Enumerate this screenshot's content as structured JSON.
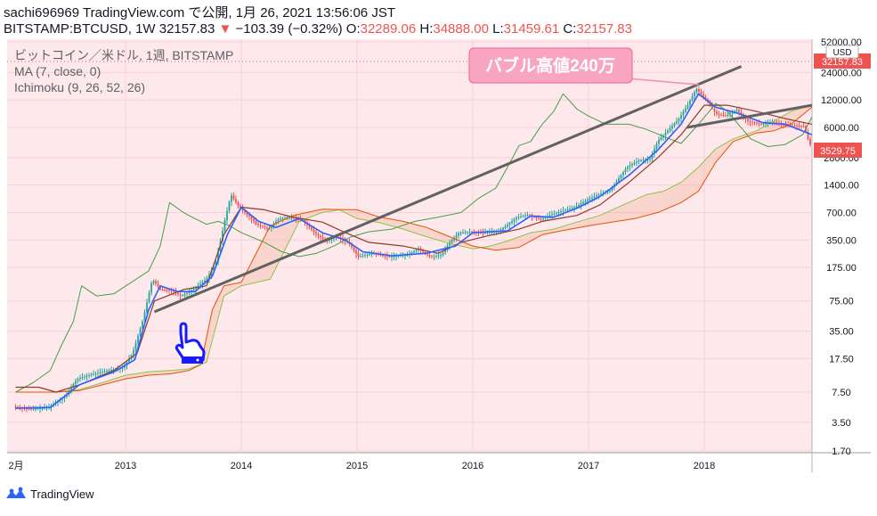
{
  "header": {
    "line1": "sachi696969 TradingView.com で公開, 1月 26, 2021 13:56:06 JST",
    "symbol": "BITSTAMP:BTCUSD, 1W 32157.83",
    "change": "−103.39 (−0.32%)",
    "o_label": "O:",
    "o_value": "32289.06",
    "h_label": "H:",
    "h_value": "34888.00",
    "l_label": "L:",
    "l_value": "31459.61",
    "c_label": "C:",
    "c_value": "32157.83"
  },
  "legend": {
    "title": "ビットコイン／米ドル, 1週, BITSTAMP",
    "ma": "MA (7, close, 0)",
    "ichimoku": "Ichimoku (9, 26, 52, 26)"
  },
  "annotation": {
    "text": "バブル高値240万"
  },
  "price_tag": {
    "current": "32157.83",
    "sub": "3529.75",
    "currency": "USD"
  },
  "footer": {
    "brand": "TradingView"
  },
  "colors": {
    "plot_bg": "#fde8ec",
    "up": "#26a69a",
    "down": "#ef5350",
    "ma": "#2962ff",
    "conversion": "#1e88e5",
    "base": "#8d3b2a",
    "lagging": "#43a047",
    "span_a": "#8bc34a",
    "span_b": "#e65100",
    "trendline": "#616161",
    "callout": "#f48fb1",
    "hand": "#1a1aff"
  },
  "chart_data": {
    "type": "line",
    "scale": "log",
    "x_labels": [
      "2月",
      "2013",
      "2014",
      "2015",
      "2016",
      "2017",
      "2018"
    ],
    "y_ticks": [
      1.7,
      3.5,
      7.5,
      17.5,
      35,
      75,
      175,
      350,
      700,
      1400,
      2800,
      6000,
      12000,
      24000,
      52000
    ],
    "y_tick_labels": [
      "1.70",
      "3.50",
      "7.50",
      "17.50",
      "35.00",
      "75.00",
      "175.00",
      "350.00",
      "700.00",
      "1400.00",
      "2800.00",
      "6000.00",
      "12000.00",
      "24000.00",
      "52000.00"
    ],
    "series": [
      {
        "key": "price",
        "points": [
          [
            2012.05,
            5.2
          ],
          [
            2012.2,
            4.9
          ],
          [
            2012.35,
            5.1
          ],
          [
            2012.5,
            6.8
          ],
          [
            2012.6,
            10.5
          ],
          [
            2012.75,
            12
          ],
          [
            2012.9,
            13.2
          ],
          [
            2013.0,
            14
          ],
          [
            2013.08,
            20
          ],
          [
            2013.17,
            47
          ],
          [
            2013.25,
            130
          ],
          [
            2013.32,
            100
          ],
          [
            2013.42,
            98
          ],
          [
            2013.5,
            85
          ],
          [
            2013.6,
            100
          ],
          [
            2013.72,
            130
          ],
          [
            2013.8,
            200
          ],
          [
            2013.88,
            600
          ],
          [
            2013.93,
            1100
          ],
          [
            2014.0,
            800
          ],
          [
            2014.08,
            650
          ],
          [
            2014.15,
            520
          ],
          [
            2014.25,
            460
          ],
          [
            2014.35,
            600
          ],
          [
            2014.45,
            620
          ],
          [
            2014.55,
            580
          ],
          [
            2014.65,
            420
          ],
          [
            2014.75,
            340
          ],
          [
            2014.85,
            380
          ],
          [
            2014.95,
            320
          ],
          [
            2015.03,
            230
          ],
          [
            2015.15,
            250
          ],
          [
            2015.3,
            230
          ],
          [
            2015.45,
            240
          ],
          [
            2015.55,
            280
          ],
          [
            2015.65,
            230
          ],
          [
            2015.75,
            240
          ],
          [
            2015.82,
            330
          ],
          [
            2015.9,
            420
          ],
          [
            2016.0,
            430
          ],
          [
            2016.1,
            420
          ],
          [
            2016.25,
            440
          ],
          [
            2016.4,
            620
          ],
          [
            2016.5,
            660
          ],
          [
            2016.6,
            590
          ],
          [
            2016.75,
            700
          ],
          [
            2016.9,
            800
          ],
          [
            2017.0,
            950
          ],
          [
            2017.1,
            1100
          ],
          [
            2017.2,
            1200
          ],
          [
            2017.35,
            2200
          ],
          [
            2017.45,
            2600
          ],
          [
            2017.55,
            2700
          ],
          [
            2017.62,
            4300
          ],
          [
            2017.72,
            5800
          ],
          [
            2017.8,
            7500
          ],
          [
            2017.88,
            10800
          ],
          [
            2017.95,
            16000
          ],
          [
            2018.0,
            13500
          ],
          [
            2018.06,
            11000
          ],
          [
            2018.12,
            8500
          ],
          [
            2018.2,
            8000
          ],
          [
            2018.3,
            9300
          ],
          [
            2018.4,
            7000
          ],
          [
            2018.5,
            6500
          ],
          [
            2018.6,
            6800
          ],
          [
            2018.7,
            6400
          ],
          [
            2018.8,
            6300
          ],
          [
            2018.88,
            6200
          ],
          [
            2018.93,
            3900
          ]
        ]
      },
      {
        "key": "ma",
        "points": [
          [
            2012.05,
            5
          ],
          [
            2012.35,
            5.1
          ],
          [
            2012.6,
            9
          ],
          [
            2012.9,
            12.5
          ],
          [
            2013.08,
            17
          ],
          [
            2013.2,
            60
          ],
          [
            2013.3,
            110
          ],
          [
            2013.45,
            95
          ],
          [
            2013.6,
            95
          ],
          [
            2013.75,
            140
          ],
          [
            2013.88,
            400
          ],
          [
            2014.0,
            800
          ],
          [
            2014.15,
            560
          ],
          [
            2014.3,
            480
          ],
          [
            2014.5,
            600
          ],
          [
            2014.7,
            420
          ],
          [
            2014.9,
            350
          ],
          [
            2015.05,
            260
          ],
          [
            2015.3,
            235
          ],
          [
            2015.6,
            250
          ],
          [
            2015.85,
            300
          ],
          [
            2016.0,
            420
          ],
          [
            2016.3,
            440
          ],
          [
            2016.5,
            640
          ],
          [
            2016.7,
            620
          ],
          [
            2016.9,
            780
          ],
          [
            2017.1,
            1050
          ],
          [
            2017.35,
            1800
          ],
          [
            2017.6,
            3400
          ],
          [
            2017.8,
            6500
          ],
          [
            2017.95,
            14000
          ],
          [
            2018.1,
            10000
          ],
          [
            2018.3,
            8500
          ],
          [
            2018.5,
            6800
          ],
          [
            2018.7,
            6500
          ],
          [
            2018.93,
            5000
          ]
        ]
      },
      {
        "key": "base",
        "points": [
          [
            2012.05,
            8.5
          ],
          [
            2012.25,
            8.5
          ],
          [
            2012.4,
            7.5
          ],
          [
            2012.6,
            9
          ],
          [
            2012.9,
            13
          ],
          [
            2013.1,
            20
          ],
          [
            2013.25,
            75
          ],
          [
            2013.5,
            100
          ],
          [
            2013.7,
            110
          ],
          [
            2013.85,
            400
          ],
          [
            2014.0,
            800
          ],
          [
            2014.2,
            750
          ],
          [
            2014.45,
            620
          ],
          [
            2014.7,
            550
          ],
          [
            2014.9,
            420
          ],
          [
            2015.1,
            330
          ],
          [
            2015.4,
            300
          ],
          [
            2015.7,
            250
          ],
          [
            2015.9,
            330
          ],
          [
            2016.1,
            380
          ],
          [
            2016.4,
            460
          ],
          [
            2016.6,
            560
          ],
          [
            2016.9,
            650
          ],
          [
            2017.1,
            850
          ],
          [
            2017.35,
            1500
          ],
          [
            2017.6,
            2800
          ],
          [
            2017.8,
            5000
          ],
          [
            2018.0,
            10500
          ],
          [
            2018.2,
            10500
          ],
          [
            2018.45,
            9000
          ],
          [
            2018.7,
            7500
          ],
          [
            2018.93,
            6500
          ]
        ]
      },
      {
        "key": "lagging",
        "points": [
          [
            2012.05,
            7.5
          ],
          [
            2012.2,
            9.5
          ],
          [
            2012.35,
            13
          ],
          [
            2012.45,
            25
          ],
          [
            2012.55,
            45
          ],
          [
            2012.62,
            110
          ],
          [
            2012.75,
            85
          ],
          [
            2012.9,
            90
          ],
          [
            2013.05,
            120
          ],
          [
            2013.2,
            160
          ],
          [
            2013.3,
            300
          ],
          [
            2013.38,
            900
          ],
          [
            2013.5,
            700
          ],
          [
            2013.6,
            600
          ],
          [
            2013.7,
            520
          ],
          [
            2013.8,
            560
          ],
          [
            2013.9,
            500
          ],
          [
            2014.0,
            420
          ],
          [
            2014.2,
            330
          ],
          [
            2014.35,
            260
          ],
          [
            2014.5,
            230
          ],
          [
            2014.65,
            250
          ],
          [
            2014.8,
            300
          ],
          [
            2014.95,
            380
          ],
          [
            2015.1,
            430
          ],
          [
            2015.3,
            460
          ],
          [
            2015.5,
            560
          ],
          [
            2015.7,
            620
          ],
          [
            2015.9,
            700
          ],
          [
            2016.05,
            1000
          ],
          [
            2016.2,
            1300
          ],
          [
            2016.3,
            2200
          ],
          [
            2016.4,
            3800
          ],
          [
            2016.5,
            4200
          ],
          [
            2016.6,
            6500
          ],
          [
            2016.7,
            9000
          ],
          [
            2016.78,
            14000
          ],
          [
            2016.83,
            12000
          ],
          [
            2016.9,
            9500
          ],
          [
            2017.0,
            8000
          ],
          [
            2017.15,
            6500
          ],
          [
            2017.35,
            6500
          ],
          [
            2017.5,
            5700
          ],
          [
            2017.7,
            4500
          ],
          [
            2017.8,
            4000
          ],
          [
            2017.95,
            6500
          ],
          [
            2018.1,
            11000
          ],
          [
            2018.2,
            9000
          ],
          [
            2018.4,
            4500
          ],
          [
            2018.55,
            3700
          ],
          [
            2018.7,
            3900
          ],
          [
            2018.85,
            5000
          ],
          [
            2018.93,
            7800
          ]
        ]
      },
      {
        "key": "span_a",
        "points": [
          [
            2012.05,
            7.5
          ],
          [
            2012.4,
            7.5
          ],
          [
            2012.6,
            8
          ],
          [
            2012.8,
            9.5
          ],
          [
            2013.0,
            11.5
          ],
          [
            2013.2,
            12.5
          ],
          [
            2013.4,
            13
          ],
          [
            2013.55,
            13.5
          ],
          [
            2013.7,
            16
          ],
          [
            2013.85,
            85
          ],
          [
            2014.0,
            110
          ],
          [
            2014.25,
            130
          ],
          [
            2014.5,
            560
          ],
          [
            2014.7,
            700
          ],
          [
            2014.85,
            750
          ],
          [
            2015.0,
            600
          ],
          [
            2015.2,
            540
          ],
          [
            2015.4,
            460
          ],
          [
            2015.6,
            380
          ],
          [
            2015.8,
            320
          ],
          [
            2016.0,
            280
          ],
          [
            2016.15,
            300
          ],
          [
            2016.3,
            340
          ],
          [
            2016.5,
            420
          ],
          [
            2016.7,
            460
          ],
          [
            2016.9,
            550
          ],
          [
            2017.1,
            650
          ],
          [
            2017.3,
            850
          ],
          [
            2017.5,
            1100
          ],
          [
            2017.65,
            1200
          ],
          [
            2017.8,
            1500
          ],
          [
            2017.95,
            2200
          ],
          [
            2018.1,
            3500
          ],
          [
            2018.25,
            4500
          ],
          [
            2018.45,
            5500
          ],
          [
            2018.6,
            7000
          ],
          [
            2018.75,
            9000
          ],
          [
            2018.93,
            10500
          ]
        ]
      },
      {
        "key": "span_b",
        "points": [
          [
            2012.05,
            7.5
          ],
          [
            2012.4,
            7.5
          ],
          [
            2012.6,
            7.8
          ],
          [
            2012.8,
            9
          ],
          [
            2013.0,
            10.5
          ],
          [
            2013.2,
            11.5
          ],
          [
            2013.4,
            12
          ],
          [
            2013.55,
            13
          ],
          [
            2013.65,
            15
          ],
          [
            2013.75,
            60
          ],
          [
            2013.85,
            110
          ],
          [
            2014.0,
            120
          ],
          [
            2014.25,
            500
          ],
          [
            2014.45,
            650
          ],
          [
            2014.7,
            760
          ],
          [
            2015.0,
            750
          ],
          [
            2015.2,
            620
          ],
          [
            2015.4,
            560
          ],
          [
            2015.6,
            480
          ],
          [
            2015.8,
            380
          ],
          [
            2016.0,
            300
          ],
          [
            2016.2,
            270
          ],
          [
            2016.4,
            290
          ],
          [
            2016.6,
            400
          ],
          [
            2016.8,
            450
          ],
          [
            2017.0,
            500
          ],
          [
            2017.2,
            550
          ],
          [
            2017.4,
            600
          ],
          [
            2017.6,
            700
          ],
          [
            2017.8,
            900
          ],
          [
            2017.95,
            1200
          ],
          [
            2018.1,
            2500
          ],
          [
            2018.25,
            4200
          ],
          [
            2018.45,
            5200
          ],
          [
            2018.6,
            5500
          ],
          [
            2018.75,
            6500
          ],
          [
            2018.93,
            10000
          ]
        ]
      },
      {
        "key": "trend1",
        "points": [
          [
            2013.25,
            57
          ],
          [
            2018.32,
            28000
          ]
        ]
      },
      {
        "key": "trend2",
        "points": [
          [
            2017.85,
            6000
          ],
          [
            2018.93,
            10500
          ]
        ]
      }
    ]
  }
}
